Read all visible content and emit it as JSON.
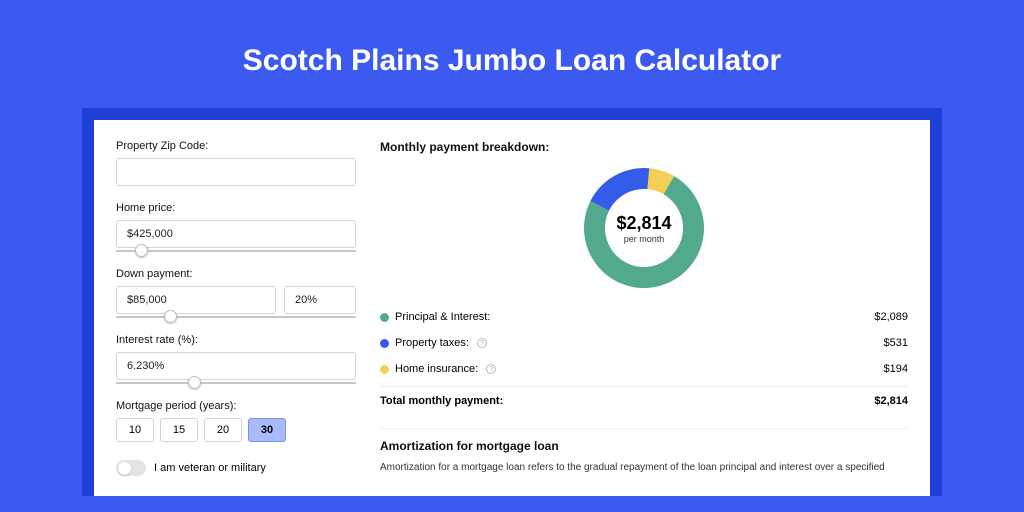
{
  "title": "Scotch Plains Jumbo Loan Calculator",
  "form": {
    "zip_label": "Property Zip Code:",
    "zip_value": "",
    "home_price_label": "Home price:",
    "home_price_value": "$425,000",
    "home_price_slider_pct": 8,
    "down_label": "Down payment:",
    "down_value": "$85,000",
    "down_pct_value": "20%",
    "down_slider_pct": 20,
    "rate_label": "Interest rate (%):",
    "rate_value": "6.230%",
    "rate_slider_pct": 30,
    "period_label": "Mortgage period (years):",
    "periods": [
      "10",
      "15",
      "20",
      "30"
    ],
    "period_selected": "30",
    "veteran_label": "I am veteran or military",
    "veteran_on": false
  },
  "breakdown": {
    "title": "Monthly payment breakdown:",
    "donut_amount": "$2,814",
    "donut_sub": "per month",
    "rows": [
      {
        "label": "Principal & Interest:",
        "value": "$2,089",
        "color": "#52a98c",
        "info": false
      },
      {
        "label": "Property taxes:",
        "value": "$531",
        "color": "#335de8",
        "info": true
      },
      {
        "label": "Home insurance:",
        "value": "$194",
        "color": "#f3cf55",
        "info": true
      }
    ],
    "total_label": "Total monthly payment:",
    "total_value": "$2,814",
    "donut": {
      "segments": [
        {
          "color": "#f3cf55",
          "pct": 7
        },
        {
          "color": "#52a98c",
          "pct": 74
        },
        {
          "color": "#335de8",
          "pct": 19
        }
      ],
      "start_angle": -85,
      "thickness": 21,
      "radius": 60
    }
  },
  "amort": {
    "title": "Amortization for mortgage loan",
    "text": "Amortization for a mortgage loan refers to the gradual repayment of the loan principal and interest over a specified"
  },
  "colors": {
    "page_bg": "#3c5af0",
    "outer_bg": "#1f3fd6",
    "card_bg": "#ffffff"
  }
}
